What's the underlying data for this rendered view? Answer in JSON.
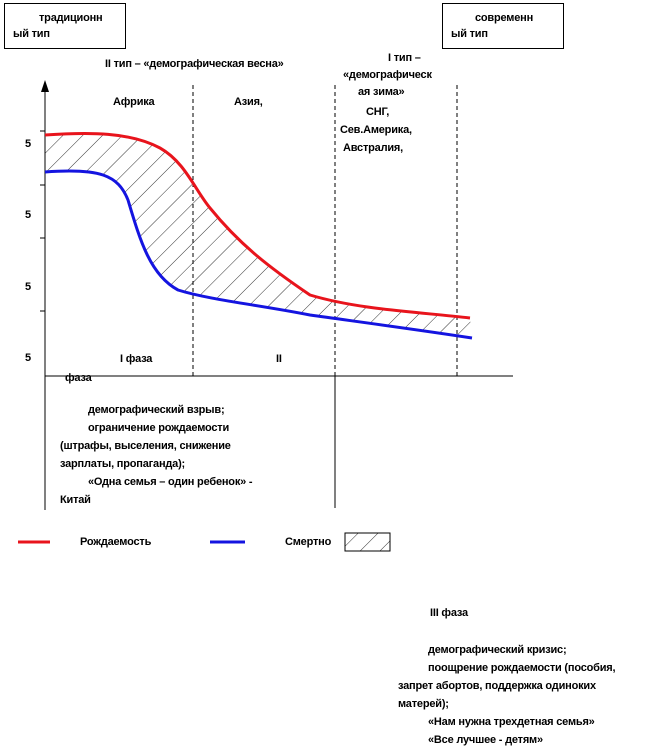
{
  "boxes": {
    "left": {
      "line1": "традиционн",
      "line2": "ый тип"
    },
    "right": {
      "line1": "современн",
      "line2": "ый тип"
    }
  },
  "labels": {
    "type2": "II тип – «демографическая весна»",
    "type1_l1": "I тип –",
    "type1_l2": "«демографическ",
    "type1_l3": "ая зима»",
    "africa": "Африка",
    "asia": "Азия,",
    "region_l1": "СНГ,",
    "region_l2": "Сев.Америка,",
    "region_l3": "Австралия,",
    "phase1": "I фаза",
    "phase2": "II",
    "axis_word": "фаза"
  },
  "yticks": [
    "5",
    "5",
    "5",
    "5"
  ],
  "phase1_notes": {
    "l1": "демографический взрыв;",
    "l2": "ограничение рождаемости",
    "l3": "(штрафы, выселения, снижение",
    "l4": "зарплаты, пропаганда);",
    "l5": "«Одна семья – один ребенок» -",
    "l6": "Китай"
  },
  "legend": {
    "birth": "Рождаемость",
    "death": "Смертно",
    "birth_color": "#e8141c",
    "death_color": "#1414e0"
  },
  "phase3": {
    "title": "III фаза",
    "l1": "демографический кризис;",
    "l2": "поощрение рождаемости (пособия,",
    "l3": "запрет абортов, поддержка одиноких",
    "l4": "матерей);",
    "l5": "«Нам нужна трехдетная семья»",
    "l6": "«Все лучшее - детям»"
  }
}
